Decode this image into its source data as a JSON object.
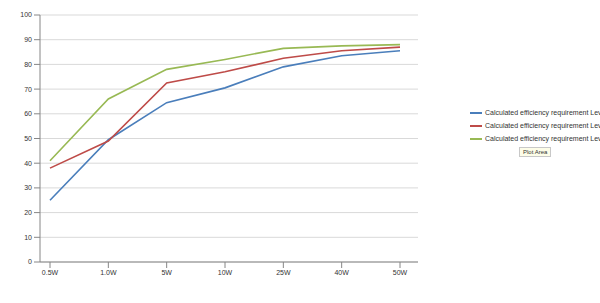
{
  "chart_data": {
    "type": "line",
    "categories": [
      "0.5W",
      "1.0W",
      "5W",
      "10W",
      "25W",
      "40W",
      "50W"
    ],
    "series": [
      {
        "name": "Calculated efficiency requirement Level IV",
        "color": "#4a7ebb",
        "values": [
          25,
          49.5,
          64.5,
          70.5,
          79,
          83.5,
          85.5
        ]
      },
      {
        "name": "Calculated efficiency requirement Level V",
        "color": "#be4b48",
        "values": [
          38,
          49,
          72.5,
          77,
          82.5,
          85.5,
          87
        ]
      },
      {
        "name": "Calculated efficiency requirement Level VI",
        "color": "#98b954",
        "values": [
          41,
          66,
          78,
          82,
          86.5,
          87.5,
          88
        ]
      }
    ],
    "ylim": [
      0,
      100
    ],
    "yticks": [
      0,
      10,
      20,
      30,
      40,
      50,
      60,
      70,
      80,
      90,
      100
    ],
    "grid": true,
    "legend": "right",
    "annotations": [
      "Plot Area"
    ]
  }
}
